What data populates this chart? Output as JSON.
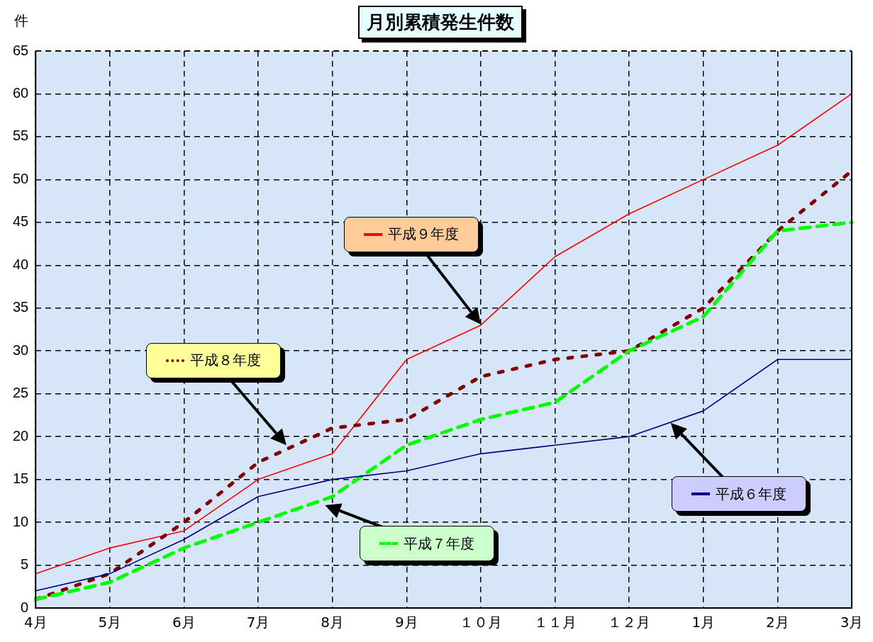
{
  "chart_data": {
    "type": "line",
    "title": "月別累積発生件数",
    "ylabel": "件",
    "categories": [
      "4月",
      "5月",
      "6月",
      "7月",
      "8月",
      "9月",
      "１０月",
      "１１月",
      "１２月",
      "1月",
      "2月",
      "3月"
    ],
    "ylim": [
      0,
      65
    ],
    "yticks": [
      0,
      5,
      10,
      15,
      20,
      25,
      30,
      35,
      40,
      45,
      50,
      55,
      60,
      65
    ],
    "grid": true,
    "legend": "center",
    "series": [
      {
        "name": "平成６年度",
        "color": "#000080",
        "line_style": "solid",
        "values": [
          2,
          4,
          8,
          13,
          15,
          16,
          18,
          19,
          20,
          23,
          29,
          29
        ]
      },
      {
        "name": "平成７年度",
        "color": "#00ff00",
        "line_style": "dashed",
        "values": [
          1,
          3,
          7,
          10,
          13,
          19,
          22,
          24,
          30,
          34,
          44,
          45
        ]
      },
      {
        "name": "平成８年度",
        "color": "#800000",
        "line_style": "dotted",
        "values": [
          1,
          4,
          10,
          17,
          21,
          22,
          27,
          29,
          30,
          35,
          44,
          51
        ]
      },
      {
        "name": "平成９年度",
        "color": "#ff0000",
        "line_style": "solid",
        "values": [
          4,
          7,
          9,
          15,
          18,
          29,
          33,
          41,
          46,
          50,
          54,
          60
        ]
      }
    ]
  }
}
